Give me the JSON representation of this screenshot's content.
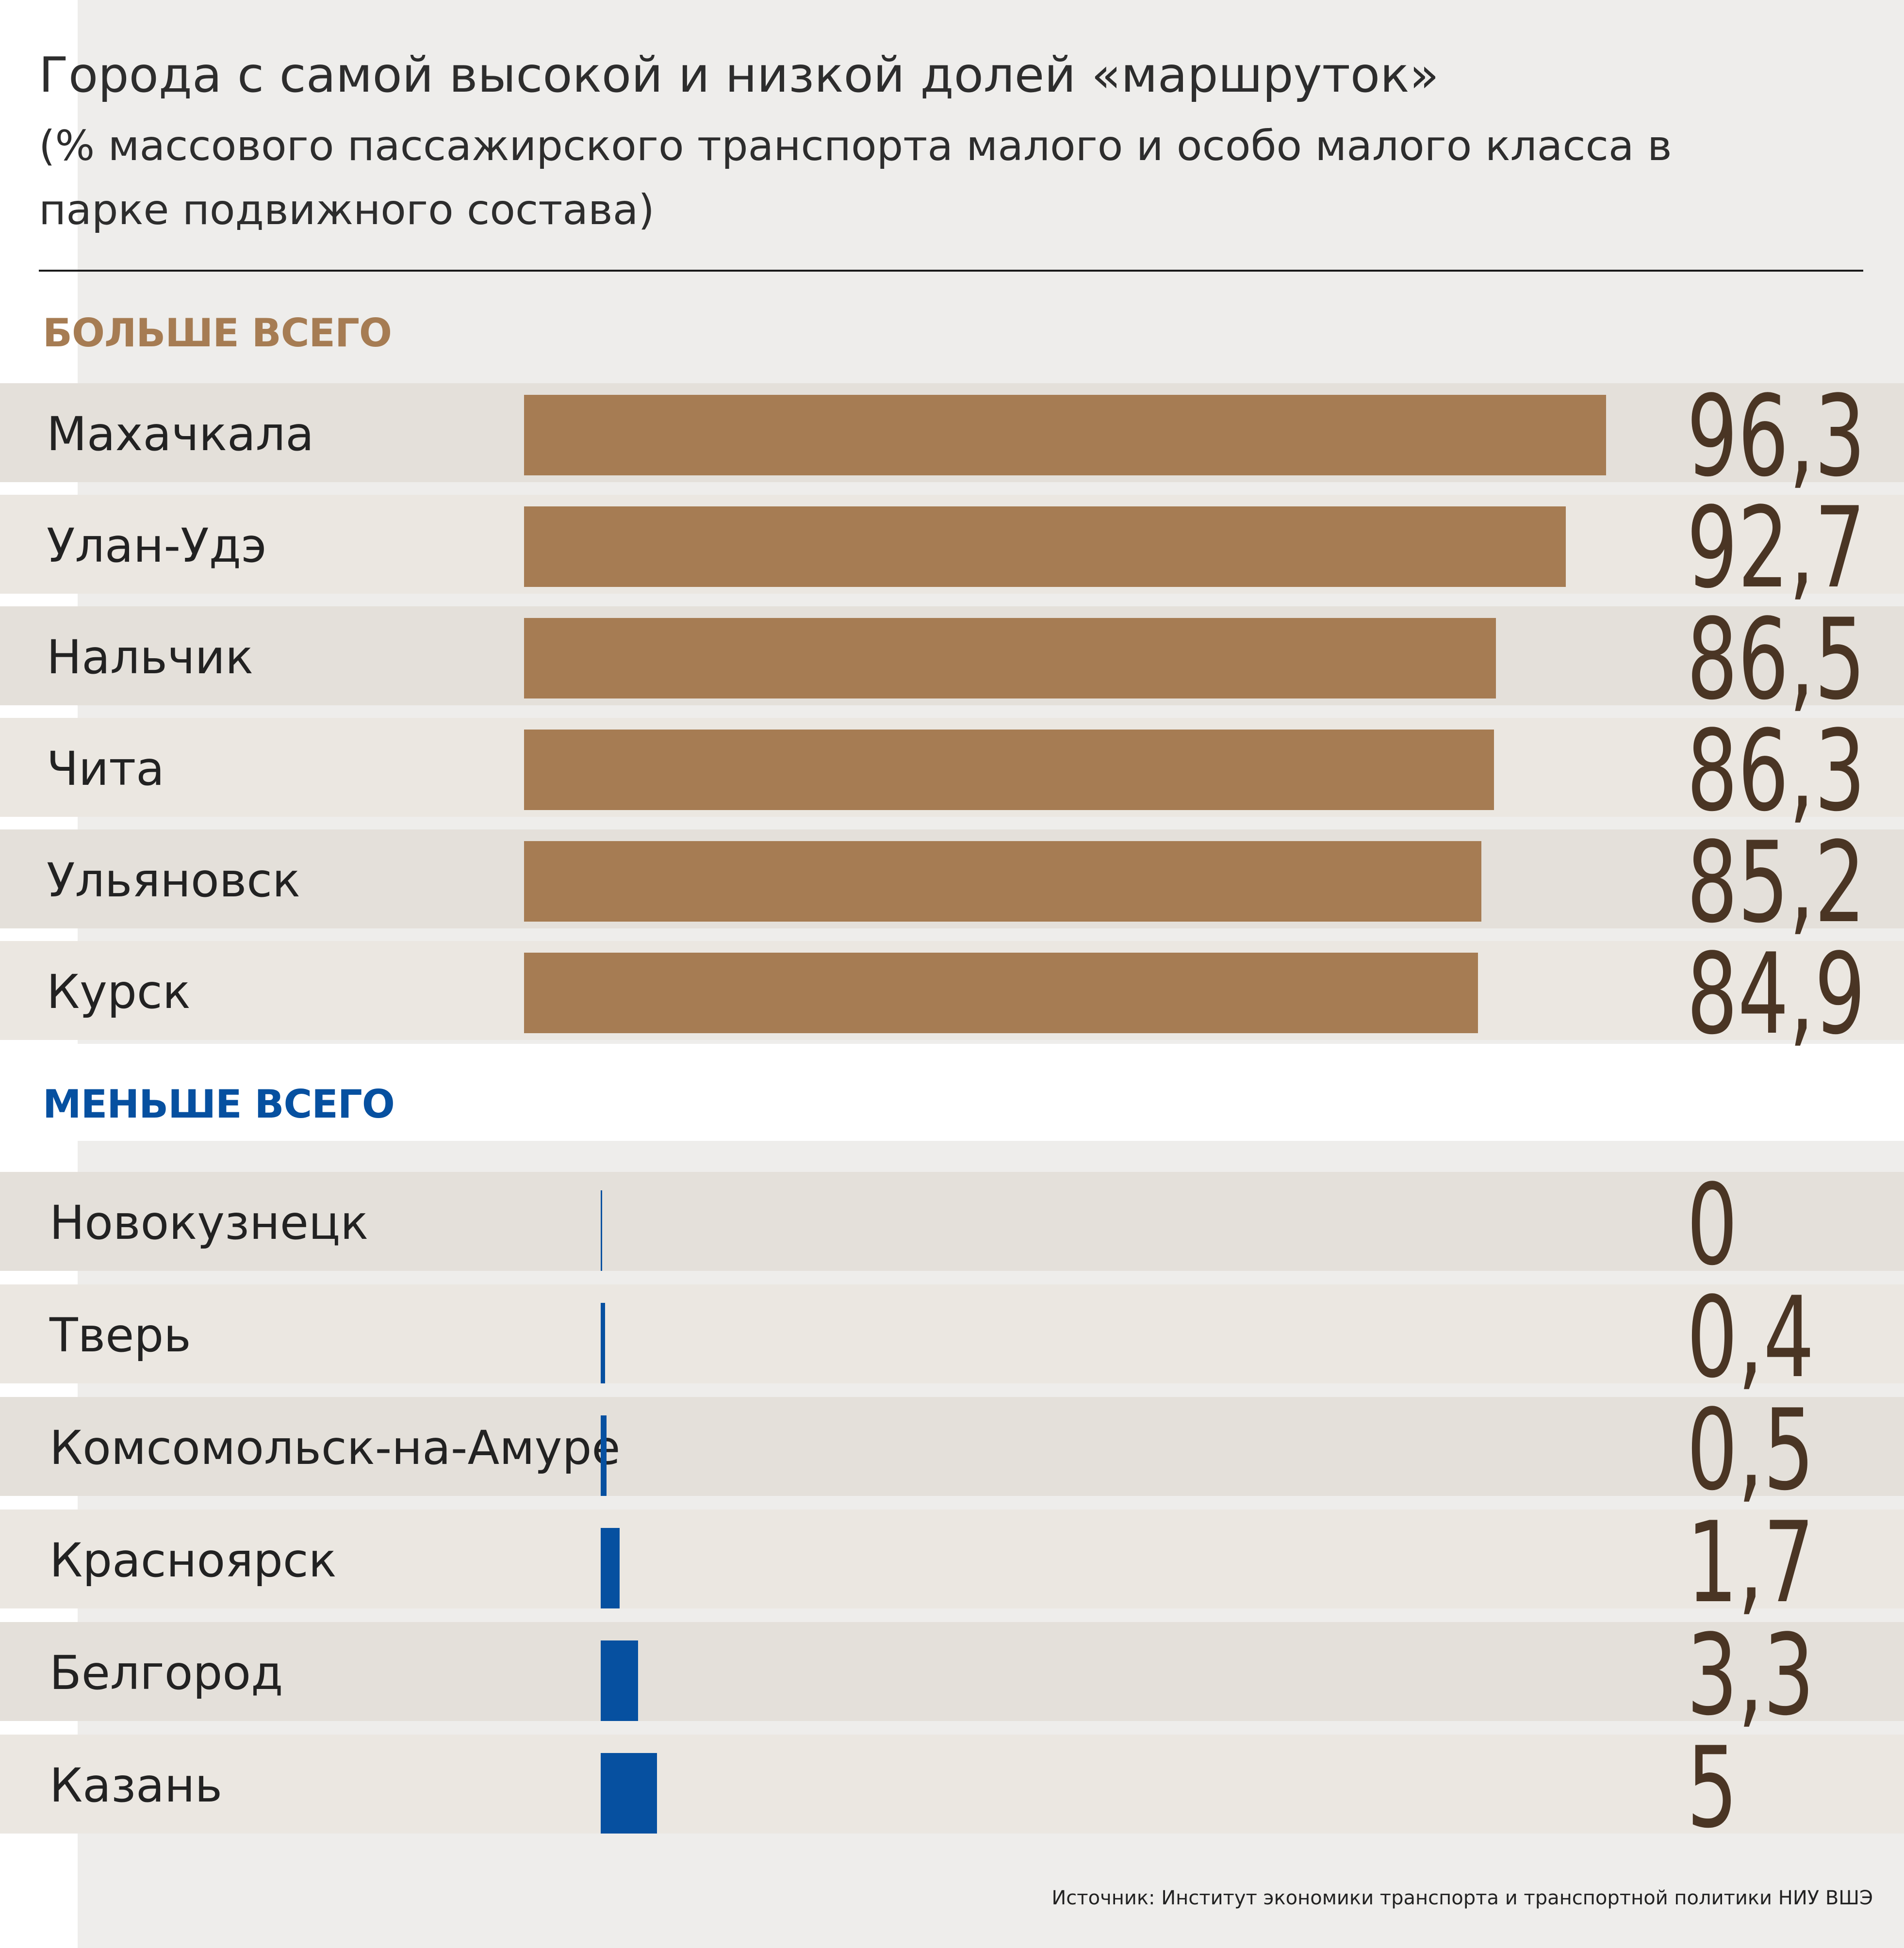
{
  "chart_data": {
    "type": "bar",
    "title": "Города с самой высокой и низкой долей «маршруток»",
    "subtitle": "(% массового пассажирского транспорта малого и особо малого класса в парке подвижного состава)",
    "source": "Источник: Институт экономики транспорта и транспортной политики НИУ ВШЭ",
    "groups": [
      {
        "label": "БОЛЬШЕ ВСЕГО",
        "color": "#a67c53",
        "label_color": "#a67c53",
        "categories": [
          "Махачкала",
          "Улан-Удэ",
          "Нальчик",
          "Чита",
          "Ульяновск",
          "Курск"
        ],
        "values": [
          96.3,
          92.7,
          86.5,
          86.3,
          85.2,
          84.9
        ],
        "value_labels": [
          "96,3",
          "92,7",
          "86,5",
          "86,3",
          "85,2",
          "84,9"
        ]
      },
      {
        "label": "МЕНЬШЕ ВСЕГО",
        "color": "#0650a0",
        "label_color": "#0650a0",
        "categories": [
          "Новокузнецк",
          "Тверь",
          "Комсомольск-на-Амуре",
          "Красноярск",
          "Белгород",
          "Казань"
        ],
        "values": [
          0,
          0.4,
          0.5,
          1.7,
          3.3,
          5
        ],
        "value_labels": [
          "0",
          "0,4",
          "0,5",
          "1,7",
          "3,3",
          "5"
        ]
      }
    ],
    "xlim": [
      0,
      100
    ]
  }
}
